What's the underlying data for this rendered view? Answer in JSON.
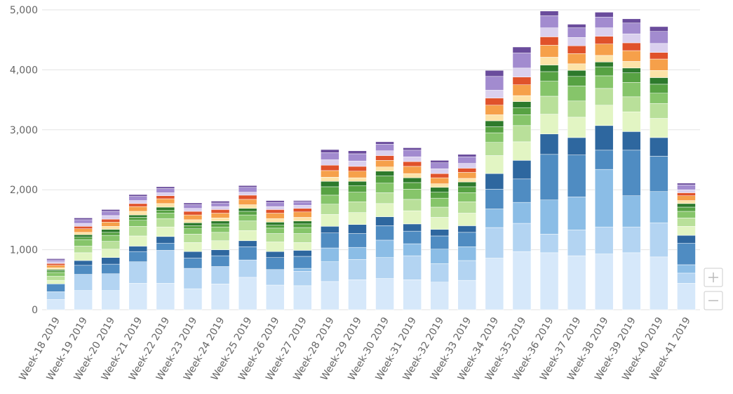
{
  "chart_data": {
    "type": "stacked_bar",
    "categories": [
      "Week-18 2019",
      "Week-19 2019",
      "Week-20 2019",
      "Week-21 2019",
      "Week-22 2019",
      "Week-23 2019",
      "Week-24 2019",
      "Week-25 2019",
      "Week-26 2019",
      "Week-27 2019",
      "Week-28 2019",
      "Week-29 2019",
      "Week-30 2019",
      "Week-31 2019",
      "Week-32 2019",
      "Week-33 2019",
      "Week-34 2019",
      "Week-35 2019",
      "Week-36 2019",
      "Week-37 2019",
      "Week-38 2019",
      "Week-39 2019",
      "Week-40 2019",
      "Week-41 2019"
    ],
    "series": [
      {
        "color": "#d6e8fa",
        "values": [
          170,
          320,
          320,
          440,
          440,
          350,
          430,
          540,
          410,
          400,
          470,
          500,
          520,
          500,
          460,
          490,
          860,
          970,
          950,
          900,
          930,
          950,
          880,
          440
        ]
      },
      {
        "color": "#b3d4f2",
        "values": [
          130,
          270,
          280,
          360,
          550,
          340,
          290,
          290,
          260,
          240,
          330,
          340,
          350,
          400,
          310,
          330,
          510,
          470,
          310,
          430,
          450,
          430,
          570,
          170
        ]
      },
      {
        "color": "#8bbde6",
        "values": [
          0,
          0,
          0,
          0,
          0,
          0,
          0,
          0,
          0,
          50,
          230,
          200,
          290,
          200,
          240,
          230,
          310,
          350,
          570,
          550,
          960,
          520,
          520,
          140
        ]
      },
      {
        "color": "#4f8cc2",
        "values": [
          130,
          150,
          160,
          170,
          120,
          170,
          180,
          220,
          200,
          200,
          250,
          230,
          240,
          210,
          220,
          240,
          330,
          390,
          760,
          700,
          320,
          760,
          590,
          360
        ]
      },
      {
        "color": "#2e679f",
        "values": [
          0,
          80,
          110,
          90,
          110,
          110,
          100,
          100,
          100,
          100,
          110,
          150,
          150,
          120,
          110,
          110,
          260,
          310,
          340,
          290,
          410,
          310,
          310,
          130
        ]
      },
      {
        "color": "#e2f5c3",
        "values": [
          60,
          130,
          140,
          170,
          160,
          150,
          150,
          170,
          160,
          130,
          200,
          200,
          220,
          220,
          200,
          210,
          300,
          310,
          330,
          340,
          340,
          330,
          320,
          150
        ]
      },
      {
        "color": "#b9e09a",
        "values": [
          70,
          110,
          130,
          160,
          140,
          140,
          140,
          160,
          140,
          150,
          170,
          180,
          180,
          190,
          170,
          190,
          220,
          270,
          300,
          270,
          280,
          250,
          250,
          140
        ]
      },
      {
        "color": "#86c56a",
        "values": [
          60,
          110,
          100,
          100,
          90,
          90,
          90,
          100,
          90,
          100,
          150,
          160,
          160,
          170,
          150,
          150,
          160,
          180,
          250,
          250,
          210,
          240,
          170,
          110
        ]
      },
      {
        "color": "#57a243",
        "values": [
          30,
          40,
          50,
          50,
          50,
          50,
          50,
          60,
          50,
          60,
          140,
          110,
          120,
          110,
          100,
          100,
          100,
          120,
          160,
          160,
          150,
          160,
          150,
          70
        ]
      },
      {
        "color": "#2d7a2c",
        "values": [
          20,
          40,
          50,
          40,
          50,
          50,
          50,
          50,
          50,
          50,
          90,
          70,
          80,
          80,
          80,
          80,
          100,
          100,
          110,
          100,
          80,
          80,
          110,
          60
        ]
      },
      {
        "color": "#fde3a8",
        "values": [
          30,
          40,
          50,
          60,
          60,
          50,
          50,
          60,
          60,
          60,
          70,
          60,
          70,
          70,
          60,
          60,
          100,
          100,
          130,
          110,
          110,
          110,
          120,
          50
        ]
      },
      {
        "color": "#f6a04a",
        "values": [
          40,
          60,
          70,
          80,
          80,
          80,
          80,
          90,
          90,
          90,
          110,
          110,
          110,
          120,
          100,
          100,
          160,
          180,
          200,
          170,
          190,
          180,
          190,
          80
        ]
      },
      {
        "color": "#e0522b",
        "values": [
          30,
          40,
          50,
          50,
          50,
          60,
          60,
          70,
          60,
          60,
          90,
          80,
          80,
          80,
          70,
          70,
          120,
          130,
          140,
          130,
          130,
          130,
          110,
          50
        ]
      },
      {
        "color": "#dad0ee",
        "values": [
          30,
          50,
          60,
          50,
          50,
          50,
          50,
          50,
          50,
          50,
          90,
          90,
          80,
          80,
          80,
          80,
          130,
          150,
          150,
          140,
          140,
          150,
          150,
          50
        ]
      },
      {
        "color": "#a28bcf",
        "values": [
          30,
          60,
          70,
          70,
          70,
          60,
          60,
          80,
          70,
          60,
          120,
          120,
          110,
          110,
          100,
          110,
          230,
          250,
          200,
          160,
          180,
          180,
          200,
          80
        ]
      },
      {
        "color": "#6a4c9c",
        "values": [
          20,
          30,
          30,
          30,
          30,
          30,
          30,
          30,
          30,
          20,
          50,
          50,
          40,
          40,
          40,
          40,
          100,
          100,
          80,
          60,
          80,
          70,
          80,
          30
        ]
      }
    ],
    "ylim": [
      0,
      5000
    ],
    "yticks": [
      0,
      {
        "value": 1000,
        "label": "1,000"
      },
      {
        "value": 2000,
        "label": "2,000"
      },
      {
        "value": 3000,
        "label": "3,000"
      },
      {
        "value": 4000,
        "label": "4,000"
      },
      {
        "value": 5000,
        "label": "5,000"
      }
    ],
    "grid": true
  }
}
